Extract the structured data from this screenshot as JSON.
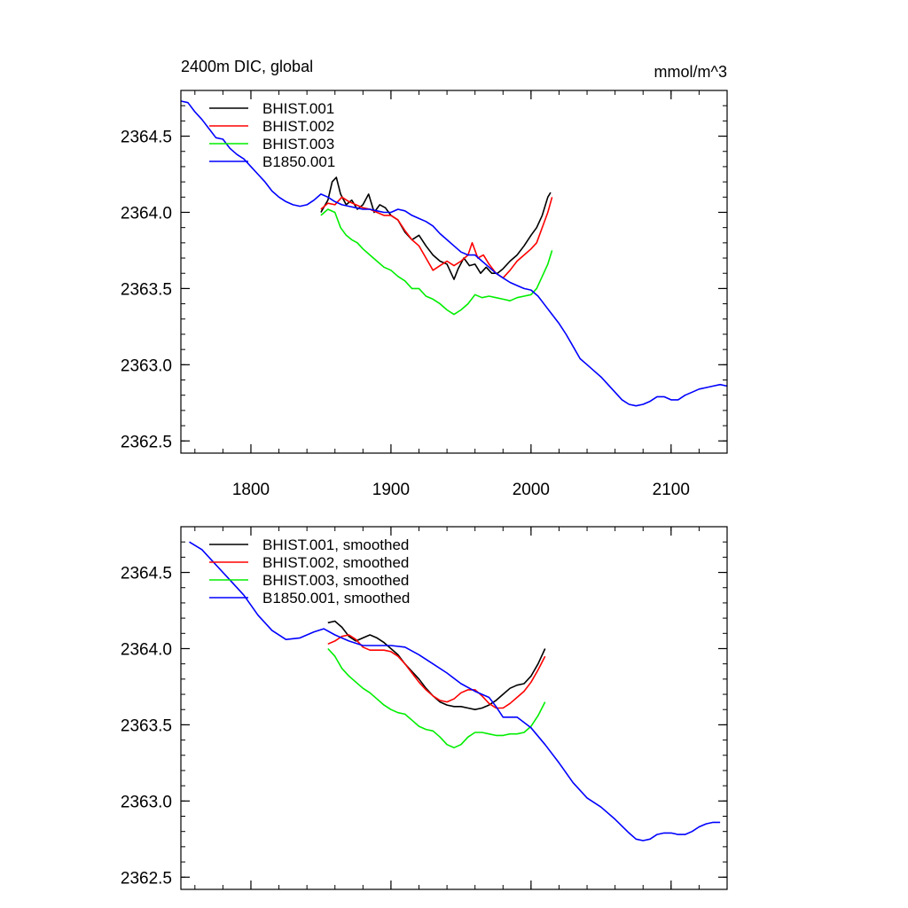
{
  "page": {
    "left_title": "2400m DIC, global",
    "right_title": "mmol/m^3"
  },
  "chart_data": [
    {
      "type": "line",
      "title": "2400m DIC, global",
      "units": "mmol/m^3",
      "xlabel": "",
      "ylabel": "",
      "xlim": [
        1750,
        2140
      ],
      "ylim": [
        2362.42,
        2364.8
      ],
      "x_ticks": [
        1800,
        1900,
        2000,
        2100
      ],
      "x_tick_labels": [
        "1800",
        "1900",
        "2000",
        "2100"
      ],
      "y_ticks": [
        2362.5,
        2363.0,
        2363.5,
        2364.0,
        2364.5
      ],
      "y_tick_labels": [
        "2362.5",
        "2363.0",
        "2363.5",
        "2364.0",
        "2364.5"
      ],
      "legend_position": "top-left",
      "grid": false,
      "series": [
        {
          "name": "BHIST.001",
          "color": "#000000",
          "x": [
            1850,
            1855,
            1858,
            1861,
            1864,
            1868,
            1872,
            1876,
            1880,
            1884,
            1888,
            1892,
            1896,
            1900,
            1905,
            1910,
            1915,
            1920,
            1925,
            1930,
            1935,
            1940,
            1945,
            1948,
            1952,
            1956,
            1960,
            1964,
            1968,
            1972,
            1976,
            1980,
            1985,
            1990,
            1995,
            2000,
            2004,
            2008,
            2012,
            2014
          ],
          "values": [
            2364.0,
            2364.08,
            2364.2,
            2364.23,
            2364.12,
            2364.05,
            2364.08,
            2364.02,
            2364.05,
            2364.12,
            2364.0,
            2364.05,
            2364.03,
            2363.98,
            2363.95,
            2363.87,
            2363.82,
            2363.85,
            2363.78,
            2363.72,
            2363.68,
            2363.66,
            2363.56,
            2363.63,
            2363.7,
            2363.65,
            2363.66,
            2363.6,
            2363.64,
            2363.6,
            2363.6,
            2363.63,
            2363.68,
            2363.72,
            2363.78,
            2363.85,
            2363.9,
            2363.98,
            2364.1,
            2364.13
          ]
        },
        {
          "name": "BHIST.002",
          "color": "#ff0000",
          "x": [
            1850,
            1855,
            1860,
            1865,
            1870,
            1875,
            1880,
            1885,
            1890,
            1895,
            1900,
            1905,
            1910,
            1915,
            1920,
            1925,
            1930,
            1935,
            1940,
            1945,
            1950,
            1955,
            1958,
            1962,
            1966,
            1970,
            1975,
            1980,
            1985,
            1990,
            1995,
            2000,
            2004,
            2008,
            2012,
            2015
          ],
          "values": [
            2364.02,
            2364.06,
            2364.05,
            2364.1,
            2364.07,
            2364.05,
            2364.03,
            2364.02,
            2364.0,
            2363.98,
            2363.98,
            2363.95,
            2363.88,
            2363.82,
            2363.78,
            2363.7,
            2363.62,
            2363.65,
            2363.68,
            2363.65,
            2363.68,
            2363.72,
            2363.8,
            2363.7,
            2363.72,
            2363.66,
            2363.6,
            2363.57,
            2363.62,
            2363.68,
            2363.72,
            2363.76,
            2363.8,
            2363.9,
            2364.0,
            2364.1
          ]
        },
        {
          "name": "BHIST.003",
          "color": "#00ee00",
          "x": [
            1850,
            1855,
            1860,
            1864,
            1868,
            1872,
            1876,
            1880,
            1885,
            1890,
            1895,
            1900,
            1905,
            1910,
            1915,
            1920,
            1925,
            1930,
            1935,
            1940,
            1945,
            1950,
            1955,
            1960,
            1965,
            1970,
            1975,
            1980,
            1985,
            1990,
            1995,
            2000,
            2004,
            2008,
            2012,
            2015
          ],
          "values": [
            2363.98,
            2364.02,
            2364.0,
            2363.9,
            2363.85,
            2363.82,
            2363.8,
            2363.76,
            2363.72,
            2363.68,
            2363.64,
            2363.62,
            2363.58,
            2363.55,
            2363.5,
            2363.5,
            2363.45,
            2363.43,
            2363.4,
            2363.36,
            2363.33,
            2363.36,
            2363.4,
            2363.46,
            2363.44,
            2363.45,
            2363.44,
            2363.43,
            2363.42,
            2363.44,
            2363.45,
            2363.46,
            2363.5,
            2363.58,
            2363.66,
            2363.75
          ]
        },
        {
          "name": "B1850.001",
          "color": "#0000ff",
          "x": [
            1750,
            1755,
            1760,
            1765,
            1770,
            1775,
            1780,
            1785,
            1790,
            1795,
            1800,
            1805,
            1810,
            1815,
            1820,
            1825,
            1830,
            1835,
            1840,
            1845,
            1850,
            1855,
            1860,
            1865,
            1870,
            1875,
            1880,
            1885,
            1890,
            1895,
            1900,
            1905,
            1910,
            1915,
            1920,
            1925,
            1930,
            1935,
            1940,
            1945,
            1950,
            1955,
            1960,
            1965,
            1970,
            1975,
            1980,
            1985,
            1990,
            1995,
            2000,
            2005,
            2010,
            2015,
            2020,
            2025,
            2030,
            2035,
            2040,
            2045,
            2050,
            2055,
            2060,
            2065,
            2070,
            2075,
            2080,
            2085,
            2090,
            2095,
            2100,
            2105,
            2110,
            2115,
            2120,
            2125,
            2130,
            2135,
            2140
          ],
          "values": [
            2364.73,
            2364.72,
            2364.66,
            2364.61,
            2364.55,
            2364.49,
            2364.48,
            2364.42,
            2364.38,
            2364.35,
            2364.3,
            2364.25,
            2364.2,
            2364.14,
            2364.1,
            2364.07,
            2364.05,
            2364.04,
            2364.05,
            2364.08,
            2364.12,
            2364.1,
            2364.07,
            2364.05,
            2364.04,
            2364.03,
            2364.02,
            2364.02,
            2364.01,
            2364.0,
            2364.0,
            2364.02,
            2364.01,
            2363.98,
            2363.96,
            2363.94,
            2363.91,
            2363.86,
            2363.82,
            2363.78,
            2363.74,
            2363.72,
            2363.72,
            2363.68,
            2363.64,
            2363.6,
            2363.57,
            2363.54,
            2363.52,
            2363.5,
            2363.49,
            2363.45,
            2363.39,
            2363.33,
            2363.27,
            2363.2,
            2363.12,
            2363.04,
            2363.0,
            2362.96,
            2362.92,
            2362.87,
            2362.82,
            2362.77,
            2362.74,
            2362.73,
            2362.74,
            2362.76,
            2362.79,
            2362.79,
            2362.77,
            2362.77,
            2362.8,
            2362.82,
            2362.84,
            2362.85,
            2362.86,
            2362.87,
            2362.86
          ]
        }
      ]
    },
    {
      "type": "line",
      "title": "",
      "xlabel": "",
      "ylabel": "",
      "xlim": [
        1750,
        2140
      ],
      "ylim": [
        2362.42,
        2364.8
      ],
      "x_ticks": [
        1800,
        1900,
        2000,
        2100
      ],
      "x_tick_labels": [],
      "y_ticks": [
        2362.5,
        2363.0,
        2363.5,
        2364.0,
        2364.5
      ],
      "y_tick_labels": [
        "2362.5",
        "2363.0",
        "2363.5",
        "2364.0",
        "2364.5"
      ],
      "legend_position": "top-left",
      "grid": false,
      "series": [
        {
          "name": "BHIST.001, smoothed",
          "color": "#000000",
          "x": [
            1855,
            1860,
            1865,
            1870,
            1875,
            1880,
            1885,
            1890,
            1895,
            1900,
            1905,
            1910,
            1915,
            1920,
            1925,
            1930,
            1935,
            1940,
            1945,
            1950,
            1955,
            1960,
            1965,
            1970,
            1975,
            1980,
            1985,
            1990,
            1995,
            2000,
            2005,
            2010
          ],
          "values": [
            2364.17,
            2364.18,
            2364.14,
            2364.08,
            2364.05,
            2364.07,
            2364.09,
            2364.07,
            2364.04,
            2364.0,
            2363.96,
            2363.9,
            2363.85,
            2363.8,
            2363.74,
            2363.69,
            2363.65,
            2363.63,
            2363.62,
            2363.62,
            2363.61,
            2363.6,
            2363.61,
            2363.63,
            2363.66,
            2363.7,
            2363.74,
            2363.76,
            2363.77,
            2363.82,
            2363.9,
            2364.0
          ]
        },
        {
          "name": "BHIST.002, smoothed",
          "color": "#ff0000",
          "x": [
            1855,
            1860,
            1865,
            1870,
            1875,
            1880,
            1885,
            1890,
            1895,
            1900,
            1905,
            1910,
            1915,
            1920,
            1925,
            1930,
            1935,
            1940,
            1945,
            1950,
            1955,
            1960,
            1965,
            1970,
            1975,
            1980,
            1985,
            1990,
            1995,
            2000,
            2005,
            2010
          ],
          "values": [
            2364.03,
            2364.05,
            2364.08,
            2364.09,
            2364.06,
            2364.01,
            2363.99,
            2363.99,
            2363.99,
            2363.98,
            2363.95,
            2363.9,
            2363.84,
            2363.78,
            2363.73,
            2363.69,
            2363.66,
            2363.65,
            2363.67,
            2363.71,
            2363.73,
            2363.73,
            2363.69,
            2363.64,
            2363.61,
            2363.61,
            2363.64,
            2363.68,
            2363.72,
            2363.78,
            2363.86,
            2363.95
          ]
        },
        {
          "name": "BHIST.003, smoothed",
          "color": "#00ee00",
          "x": [
            1855,
            1860,
            1865,
            1870,
            1875,
            1880,
            1885,
            1890,
            1895,
            1900,
            1905,
            1910,
            1915,
            1920,
            1925,
            1930,
            1935,
            1940,
            1945,
            1950,
            1955,
            1960,
            1965,
            1970,
            1975,
            1980,
            1985,
            1990,
            1995,
            2000,
            2005,
            2010
          ],
          "values": [
            2364.0,
            2363.95,
            2363.87,
            2363.82,
            2363.78,
            2363.74,
            2363.71,
            2363.67,
            2363.63,
            2363.6,
            2363.58,
            2363.57,
            2363.53,
            2363.49,
            2363.47,
            2363.46,
            2363.42,
            2363.37,
            2363.35,
            2363.37,
            2363.42,
            2363.45,
            2363.45,
            2363.44,
            2363.43,
            2363.43,
            2363.44,
            2363.44,
            2363.45,
            2363.49,
            2363.56,
            2363.65
          ]
        },
        {
          "name": "B1850.001, smoothed",
          "color": "#0000ff",
          "x": [
            1756,
            1765,
            1775,
            1785,
            1795,
            1805,
            1815,
            1825,
            1835,
            1845,
            1852,
            1860,
            1870,
            1880,
            1890,
            1900,
            1910,
            1920,
            1930,
            1940,
            1950,
            1960,
            1970,
            1975,
            1980,
            1990,
            2000,
            2010,
            2020,
            2030,
            2040,
            2050,
            2060,
            2070,
            2075,
            2080,
            2085,
            2090,
            2095,
            2100,
            2105,
            2110,
            2115,
            2120,
            2125,
            2130,
            2135
          ],
          "values": [
            2364.7,
            2364.65,
            2364.55,
            2364.45,
            2364.35,
            2364.22,
            2364.12,
            2364.06,
            2364.07,
            2364.11,
            2364.13,
            2364.09,
            2364.05,
            2364.02,
            2364.02,
            2364.02,
            2364.01,
            2363.96,
            2363.9,
            2363.84,
            2363.77,
            2363.72,
            2363.68,
            2363.62,
            2363.55,
            2363.55,
            2363.48,
            2363.37,
            2363.25,
            2363.12,
            2363.02,
            2362.96,
            2362.88,
            2362.79,
            2362.75,
            2362.74,
            2362.75,
            2362.78,
            2362.79,
            2362.79,
            2362.78,
            2362.78,
            2362.8,
            2362.83,
            2362.85,
            2362.86,
            2362.86
          ]
        }
      ]
    }
  ]
}
